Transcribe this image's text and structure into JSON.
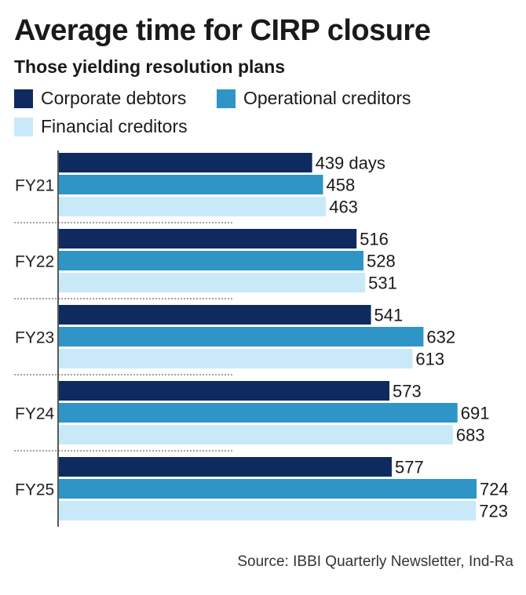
{
  "title": "Average time for CIRP closure",
  "subtitle": "Those yielding resolution plans",
  "source": "Source: IBBI Quarterly Newsletter, Ind-Ra",
  "colors": {
    "corporate_debtors": "#0f2a5e",
    "operational_creditors": "#2e95c6",
    "financial_creditors": "#c9e9f9"
  },
  "chart_data": {
    "type": "bar",
    "orientation": "horizontal",
    "title": "Average time for CIRP closure",
    "subtitle": "Those yielding resolution plans",
    "categories": [
      "FY21",
      "FY22",
      "FY23",
      "FY24",
      "FY25"
    ],
    "series": [
      {
        "name": "Corporate debtors",
        "values": [
          439,
          516,
          541,
          573,
          577
        ],
        "labels": [
          "439 days",
          "516",
          "541",
          "573",
          "577"
        ]
      },
      {
        "name": "Operational creditors",
        "values": [
          458,
          528,
          632,
          691,
          724
        ],
        "labels": [
          "458",
          "528",
          "632",
          "691",
          "724"
        ]
      },
      {
        "name": "Financial creditors",
        "values": [
          463,
          531,
          613,
          683,
          723
        ],
        "labels": [
          "463",
          "531",
          "613",
          "683",
          "723"
        ]
      }
    ],
    "unit": "days",
    "xlim": [
      0,
      724
    ],
    "grid": false,
    "legend_position": "top-left"
  }
}
